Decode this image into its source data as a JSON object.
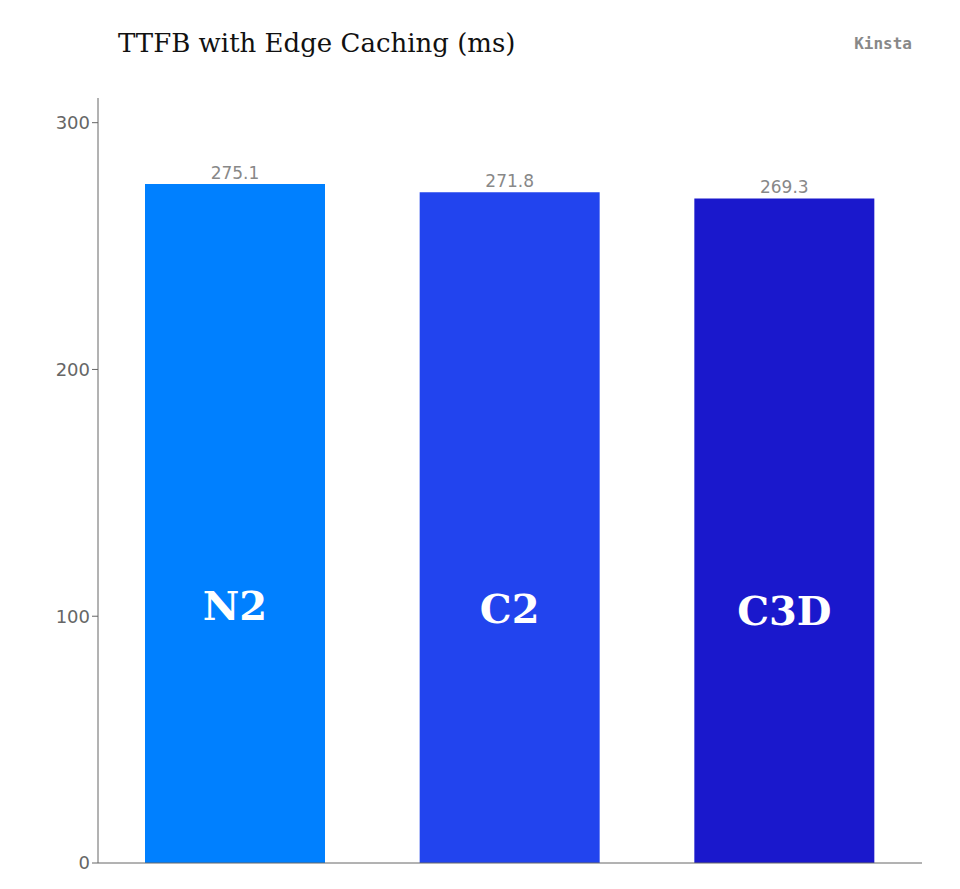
{
  "chart_data": {
    "type": "bar",
    "title": "TTFB with Edge Caching (ms)",
    "annotations": [
      "Kinsta"
    ],
    "categories": [
      "N2",
      "C2",
      "C3D"
    ],
    "values": [
      275.1,
      271.8,
      269.3
    ],
    "colors": [
      "#0080FF",
      "#2244EE",
      "#1A18CC"
    ],
    "ylim": [
      0,
      310
    ],
    "yticks": [
      0,
      100,
      200,
      300
    ],
    "data_labels": true,
    "tick_labels": "y",
    "grid": false
  }
}
